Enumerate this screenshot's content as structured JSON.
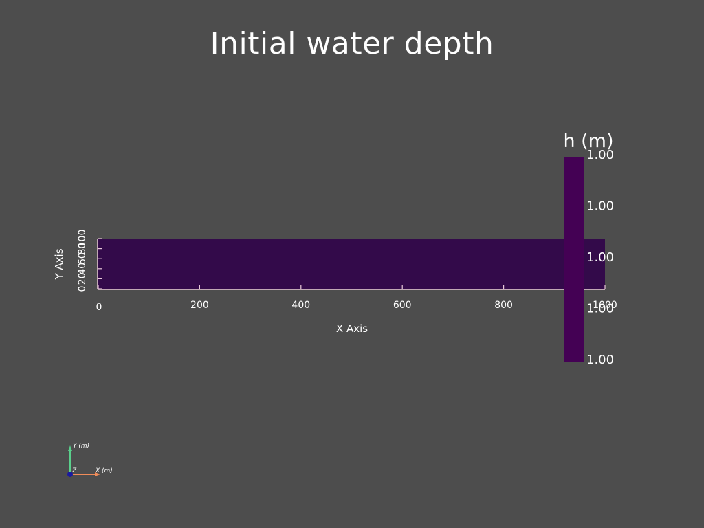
{
  "chart_data": {
    "type": "heatmap",
    "title": "Initial water depth",
    "xlabel": "X Axis",
    "ylabel": "Y Axis",
    "xlim": [
      0,
      1000
    ],
    "ylim": [
      0,
      100
    ],
    "x_ticks": [
      0,
      200,
      400,
      600,
      800,
      1000
    ],
    "y_ticks": [
      0,
      20,
      40,
      60,
      80,
      100
    ],
    "x_tick_labels": [
      "0",
      "200",
      "400",
      "600",
      "800",
      "1000"
    ],
    "y_tick_labels": [
      "0",
      "20",
      "40",
      "60",
      "80",
      "100"
    ],
    "field": {
      "name": "h (m)",
      "value": 1.0,
      "color": "#330a4a"
    },
    "colorbar": {
      "title": "h (m)",
      "color": "#440154",
      "labels": [
        "1.00",
        "1.00",
        "1.00",
        "1.00",
        "1.00"
      ]
    }
  },
  "orientation_triad": {
    "y_label": "Y (m)",
    "x_label": "X (m)",
    "z_label": "Z",
    "x_color": "#f08c5a",
    "y_color": "#5ad08c",
    "z_color": "#1a1aa0"
  },
  "colors": {
    "background": "#4d4d4d",
    "axis": "#e8c8d8"
  }
}
